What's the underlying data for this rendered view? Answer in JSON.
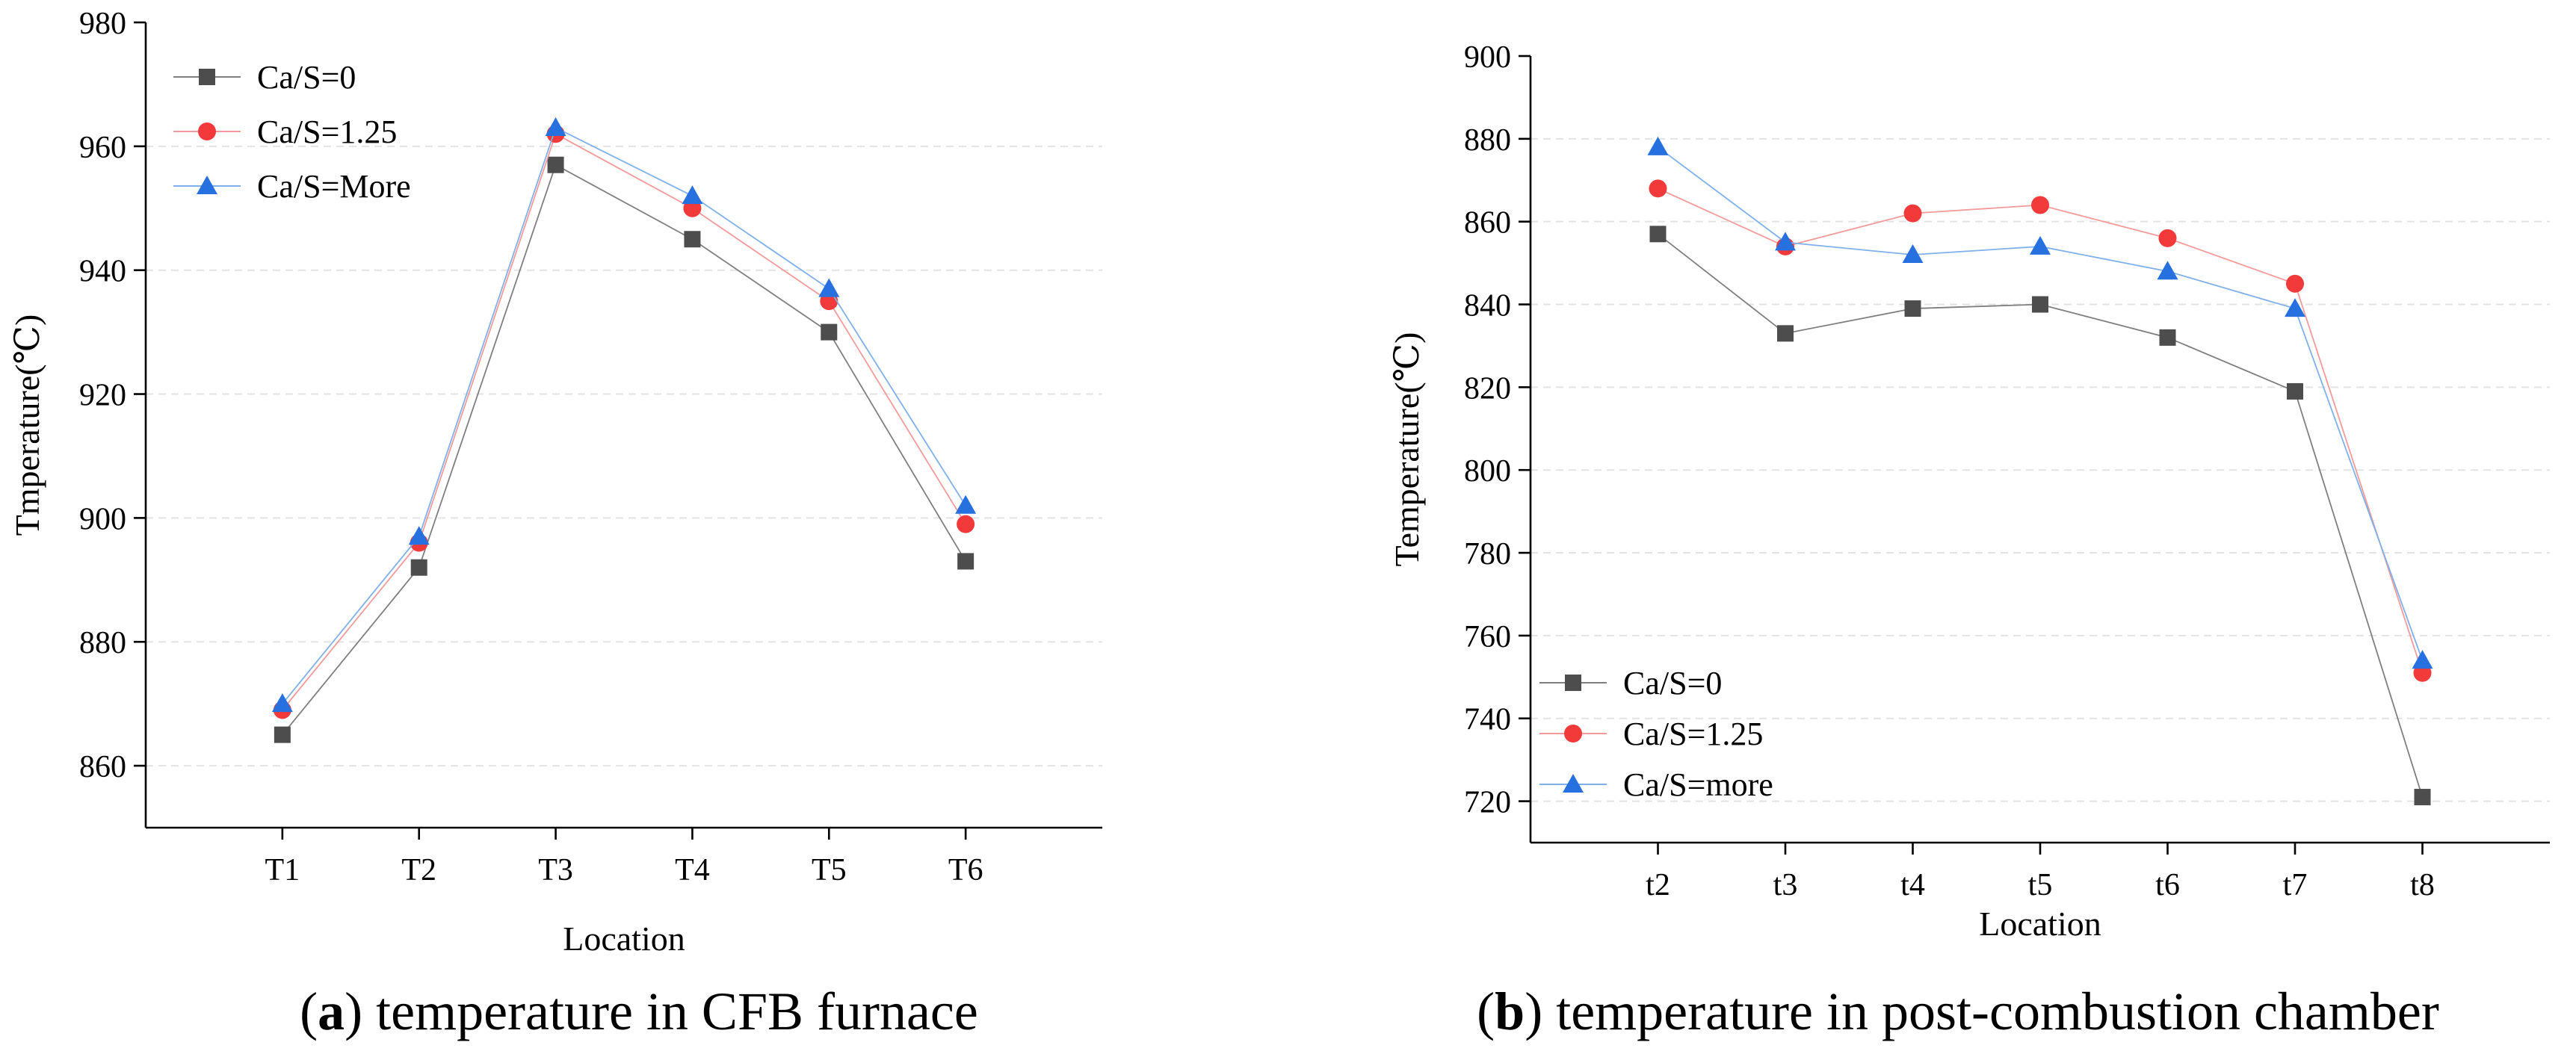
{
  "chart_data": [
    {
      "type": "line",
      "title": "",
      "caption_letter": "a",
      "caption_text": " temperature in CFB furnace",
      "xlabel": "Location",
      "ylabel": "Tmperature(℃)",
      "categories": [
        "T1",
        "T2",
        "T3",
        "T4",
        "T5",
        "T6"
      ],
      "ylim": [
        850,
        980
      ],
      "yticks": [
        860,
        880,
        900,
        920,
        940,
        960,
        980
      ],
      "grid": true,
      "legend_position": "top-left",
      "series": [
        {
          "name": "Ca/S=0",
          "marker": "square",
          "color": "#4d4d4d",
          "line_color": "#7f7f7f",
          "values": [
            865,
            892,
            957,
            945,
            930,
            893
          ]
        },
        {
          "name": "Ca/S=1.25",
          "marker": "circle",
          "color": "#f23a3a",
          "line_color": "#f39a9a",
          "values": [
            869,
            896,
            962,
            950,
            935,
            899
          ]
        },
        {
          "name": "Ca/S=More",
          "marker": "triangle",
          "color": "#2770e0",
          "line_color": "#7fb0ea",
          "values": [
            870,
            897,
            963,
            952,
            937,
            902
          ]
        }
      ]
    },
    {
      "type": "line",
      "title": "",
      "caption_letter": "b",
      "caption_text": " temperature in post-combustion chamber",
      "xlabel": "Location",
      "ylabel": "Temperature(℃)",
      "categories": [
        "t2",
        "t3",
        "t4",
        "t5",
        "t6",
        "t7",
        "t8"
      ],
      "ylim": [
        710,
        900
      ],
      "yticks": [
        720,
        740,
        760,
        780,
        800,
        820,
        840,
        860,
        880,
        900
      ],
      "grid": true,
      "legend_position": "bottom-left",
      "series": [
        {
          "name": "Ca/S=0",
          "marker": "square",
          "color": "#4d4d4d",
          "line_color": "#7f7f7f",
          "values": [
            857,
            833,
            839,
            840,
            832,
            819,
            721
          ]
        },
        {
          "name": "Ca/S=1.25",
          "marker": "circle",
          "color": "#f23a3a",
          "line_color": "#f39a9a",
          "values": [
            868,
            854,
            862,
            864,
            856,
            845,
            751
          ]
        },
        {
          "name": "Ca/S=more",
          "marker": "triangle",
          "color": "#2770e0",
          "line_color": "#7fb0ea",
          "values": [
            878,
            855,
            852,
            854,
            848,
            839,
            754
          ]
        }
      ]
    }
  ]
}
